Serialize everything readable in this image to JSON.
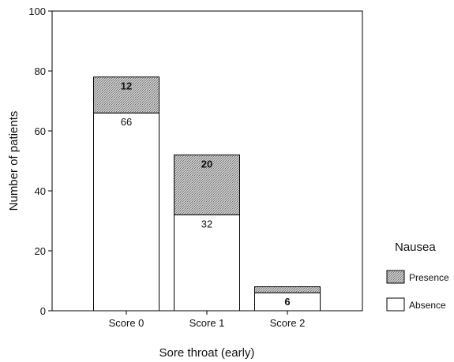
{
  "chart_data": {
    "type": "bar",
    "stacked": true,
    "categories": [
      "Score 0",
      "Score 1",
      "Score 2"
    ],
    "series": [
      {
        "name": "Absence",
        "values": [
          66,
          32,
          6
        ],
        "labels": [
          "66",
          "32",
          "6"
        ],
        "color": "#ffffff",
        "pattern": "none"
      },
      {
        "name": "Presence",
        "values": [
          12,
          20,
          2
        ],
        "labels": [
          "12",
          "20",
          ""
        ],
        "color": "#b8b8b8",
        "pattern": "crosshatch"
      }
    ],
    "title": "",
    "xlabel": "Sore throat (early)",
    "ylabel": "Number of patients",
    "ylim": [
      0,
      100
    ],
    "yticks": [
      "0",
      "20",
      "40",
      "60",
      "80",
      "100"
    ],
    "grid": false,
    "legend": {
      "title": "Nausea",
      "position": "right",
      "order": [
        "Presence",
        "Absence"
      ]
    }
  }
}
